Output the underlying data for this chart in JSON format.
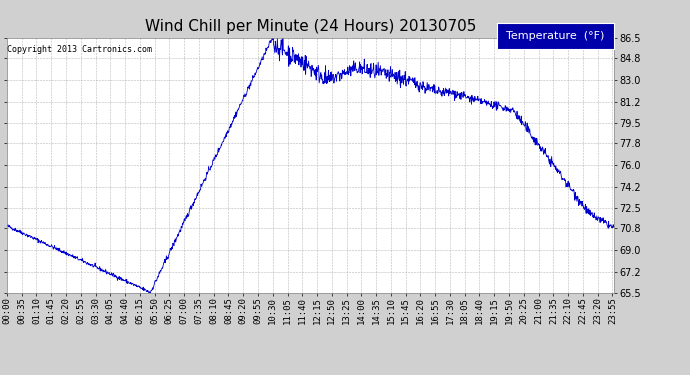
{
  "title": "Wind Chill per Minute (24 Hours) 20130705",
  "copyright": "Copyright 2013 Cartronics.com",
  "legend_label": "Temperature  (°F)",
  "line_color": "#0000cc",
  "background_color": "#d0d0d0",
  "plot_bg_color": "#ffffff",
  "grid_color": "#999999",
  "ylim": [
    65.5,
    86.5
  ],
  "yticks": [
    65.5,
    67.2,
    69.0,
    70.8,
    72.5,
    74.2,
    76.0,
    77.8,
    79.5,
    81.2,
    83.0,
    84.8,
    86.5
  ],
  "xtick_labels": [
    "00:00",
    "00:35",
    "01:10",
    "01:45",
    "02:20",
    "02:55",
    "03:30",
    "04:05",
    "04:40",
    "05:15",
    "05:50",
    "06:25",
    "07:00",
    "07:35",
    "08:10",
    "08:45",
    "09:20",
    "09:55",
    "10:30",
    "11:05",
    "11:40",
    "12:15",
    "12:50",
    "13:25",
    "14:00",
    "14:35",
    "15:10",
    "15:45",
    "16:20",
    "16:55",
    "17:30",
    "18:05",
    "18:40",
    "19:15",
    "19:50",
    "20:25",
    "21:00",
    "21:35",
    "22:10",
    "22:45",
    "23:20",
    "23:55"
  ],
  "title_fontsize": 11,
  "tick_fontsize": 6.5,
  "legend_fontsize": 8
}
